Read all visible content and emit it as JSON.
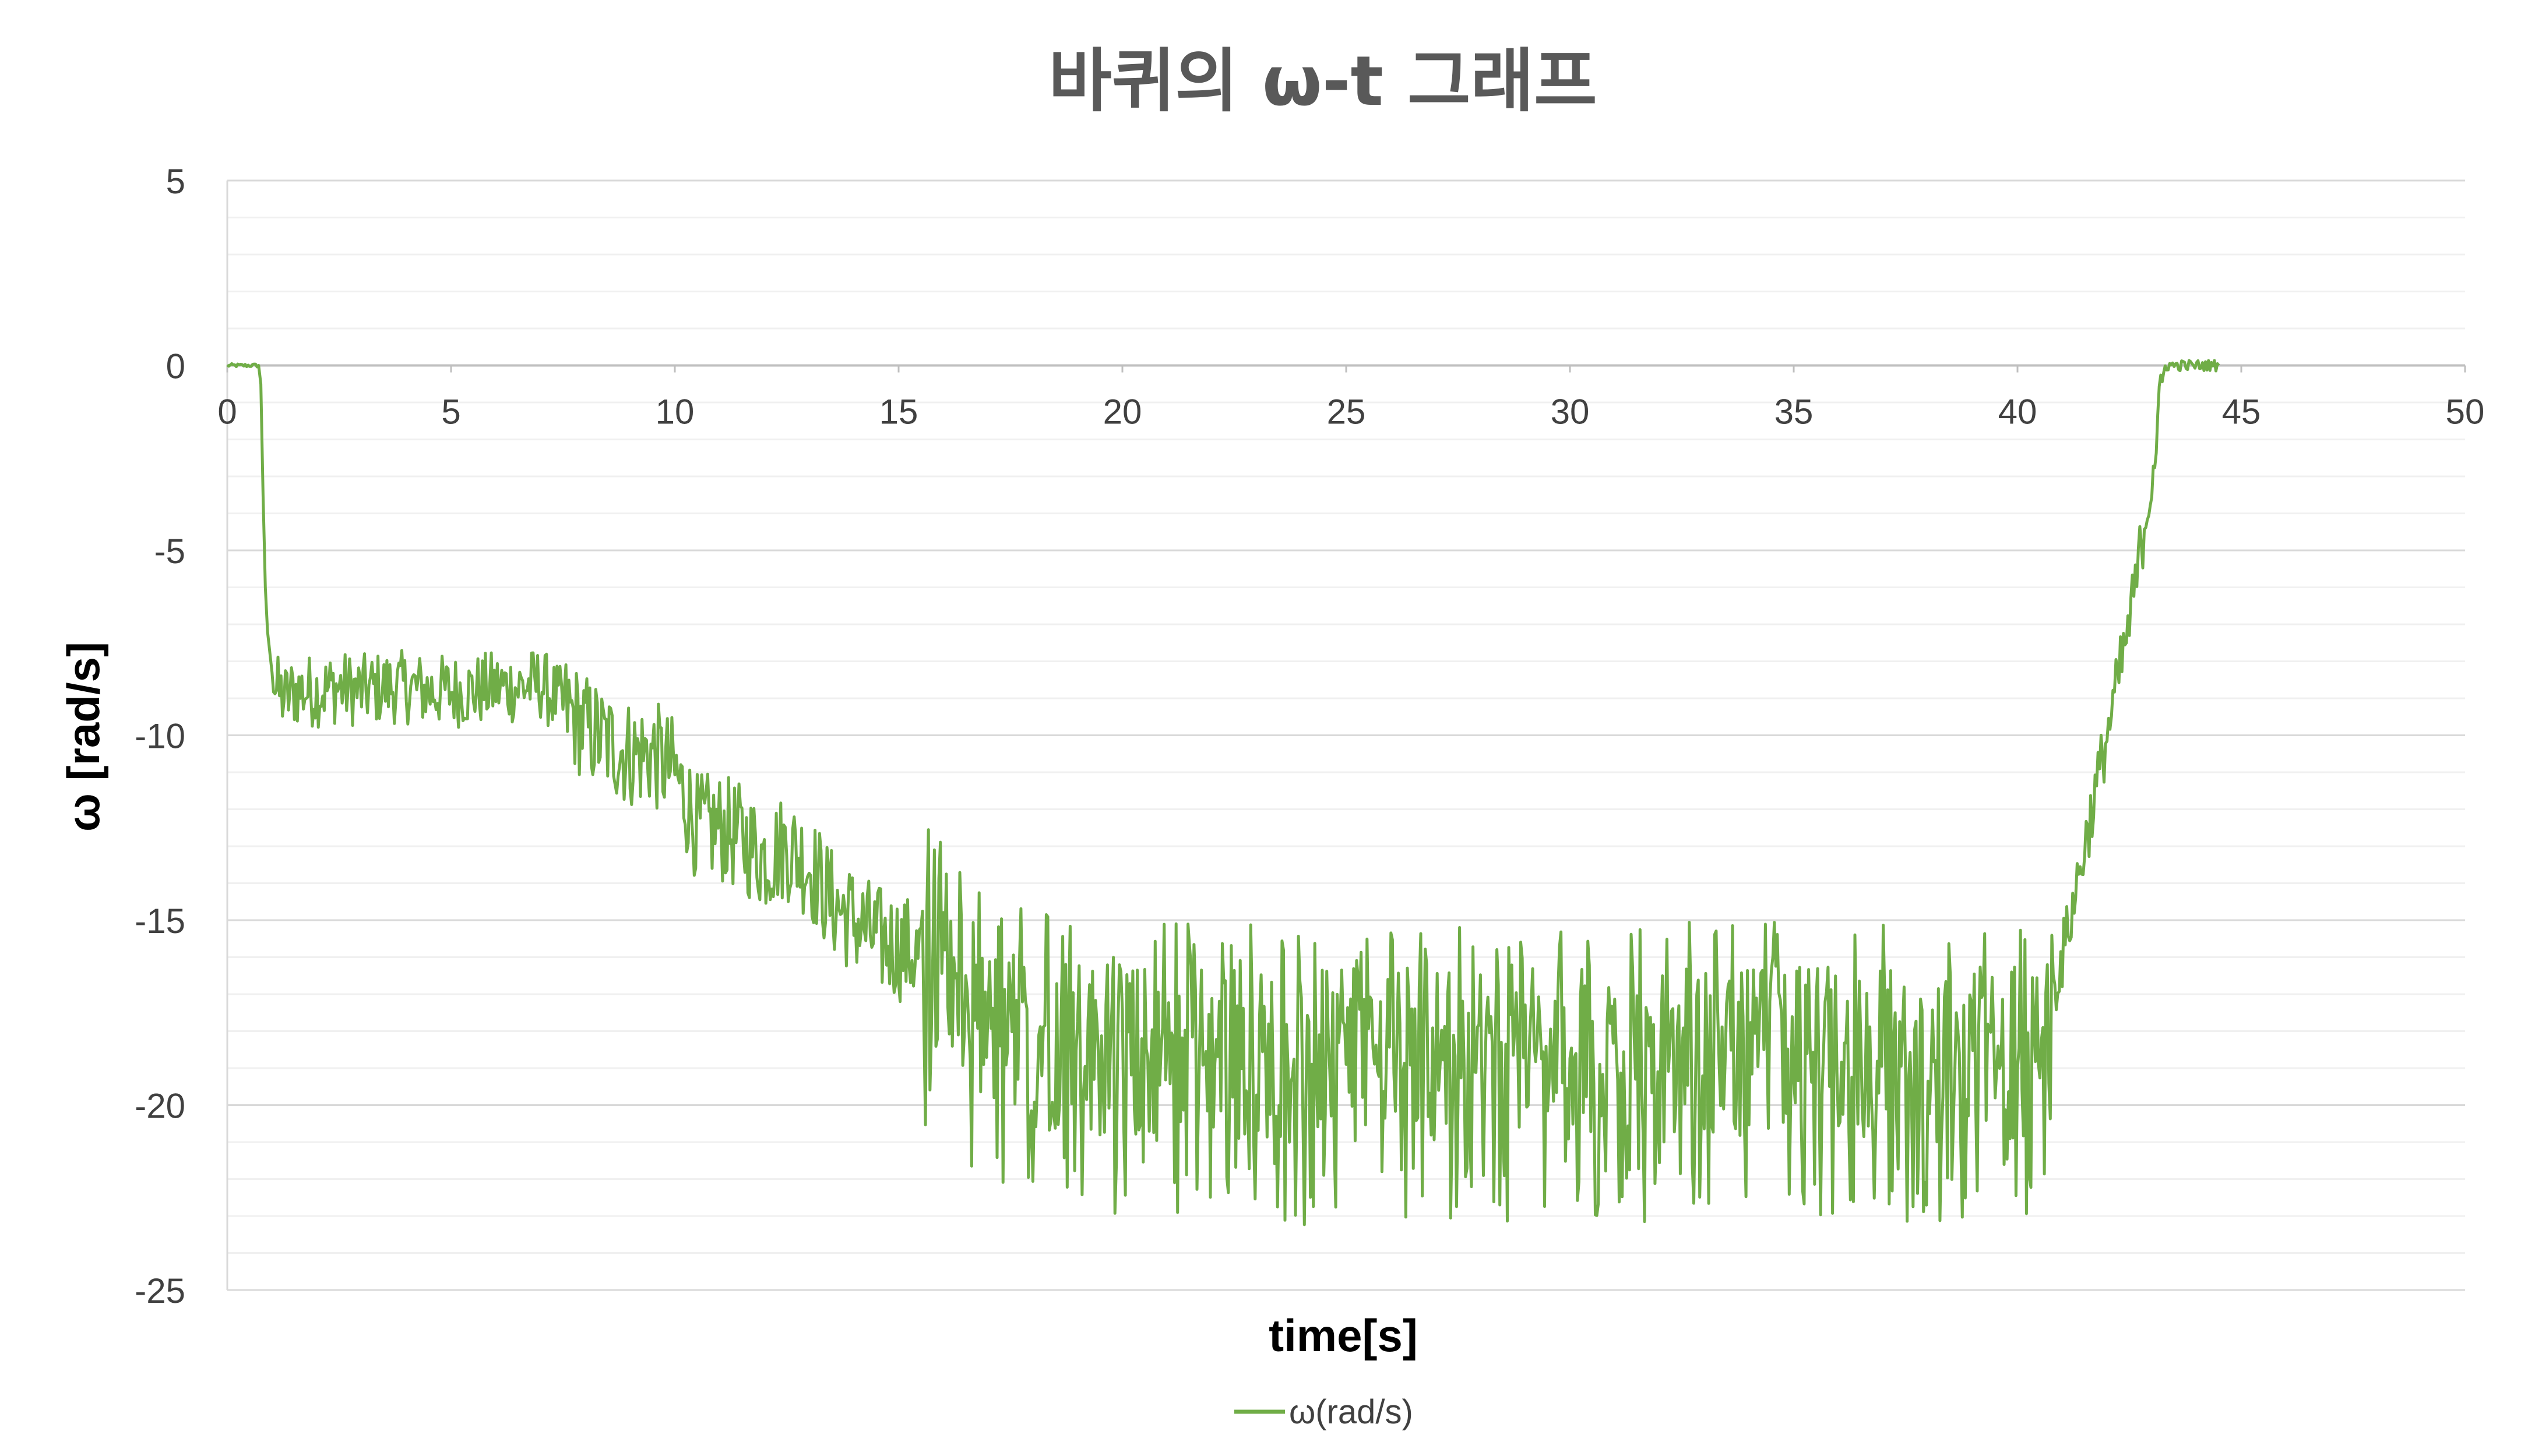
{
  "chart_data": {
    "type": "line",
    "title": "바퀴의 ω-t 그래프",
    "xlabel": "time[s]",
    "ylabel": "ω [rad/s]",
    "xlim": [
      0,
      50
    ],
    "ylim": [
      -25,
      5
    ],
    "x_ticks": [
      "0",
      "5",
      "10",
      "15",
      "20",
      "25",
      "30",
      "35",
      "40",
      "45",
      "50"
    ],
    "y_ticks": [
      "5",
      "0",
      "-5",
      "-10",
      "-15",
      "-20",
      "-25"
    ],
    "grid": true,
    "legend": "bottom",
    "colors": {
      "series": "#70AD47",
      "major_grid": "#D9D9D9",
      "minor_grid": "#F0F0F0",
      "title": "#595959"
    },
    "series": [
      {
        "name": "ω(rad/s)",
        "x": [
          0.0,
          0.3,
          0.6,
          0.7,
          0.75,
          0.8,
          0.85,
          0.9,
          1.0,
          1.1,
          1.3,
          1.5,
          2.0,
          2.5,
          3.0,
          3.5,
          4.0,
          4.5,
          5.0,
          5.5,
          6.0,
          6.5,
          7.0,
          7.5,
          8.0,
          8.5,
          9.0,
          9.5,
          10.0,
          10.5,
          11.0,
          11.5,
          12.0,
          12.5,
          13.0,
          13.5,
          14.0,
          14.5,
          15.0,
          15.5,
          16.0,
          16.5,
          17.0,
          17.5,
          18.0,
          19.0,
          20.0,
          21.0,
          22.0,
          23.0,
          24.0,
          25.0,
          26.0,
          27.0,
          28.0,
          29.0,
          30.0,
          31.0,
          32.0,
          33.0,
          34.0,
          35.0,
          36.0,
          37.0,
          38.0,
          39.0,
          40.0,
          40.5,
          41.0,
          41.5,
          42.0,
          42.5,
          43.0,
          43.3,
          43.5,
          44.0,
          44.5
        ],
        "y": [
          0.0,
          0.0,
          0.0,
          0.0,
          -0.5,
          -3.5,
          -6.0,
          -7.2,
          -8.3,
          -8.8,
          -9.0,
          -8.8,
          -8.8,
          -8.7,
          -8.8,
          -8.7,
          -8.7,
          -8.8,
          -8.8,
          -8.8,
          -8.7,
          -8.7,
          -8.6,
          -9.2,
          -9.8,
          -10.2,
          -10.5,
          -10.5,
          -11.0,
          -12.5,
          -12.5,
          -12.8,
          -13.3,
          -13.0,
          -13.5,
          -14.5,
          -15.0,
          -15.5,
          -15.7,
          -16.0,
          -16.2,
          -17.5,
          -18.0,
          -18.2,
          -18.3,
          -18.4,
          -18.6,
          -18.6,
          -18.6,
          -18.6,
          -18.7,
          -18.7,
          -18.6,
          -18.6,
          -18.6,
          -18.6,
          -18.6,
          -18.7,
          -18.6,
          -18.6,
          -18.6,
          -18.6,
          -18.6,
          -18.6,
          -18.7,
          -18.7,
          -18.5,
          -18.3,
          -16.0,
          -13.0,
          -10.0,
          -7.0,
          -3.0,
          0.0,
          0.0,
          0.0,
          0.0
        ]
      }
    ]
  }
}
